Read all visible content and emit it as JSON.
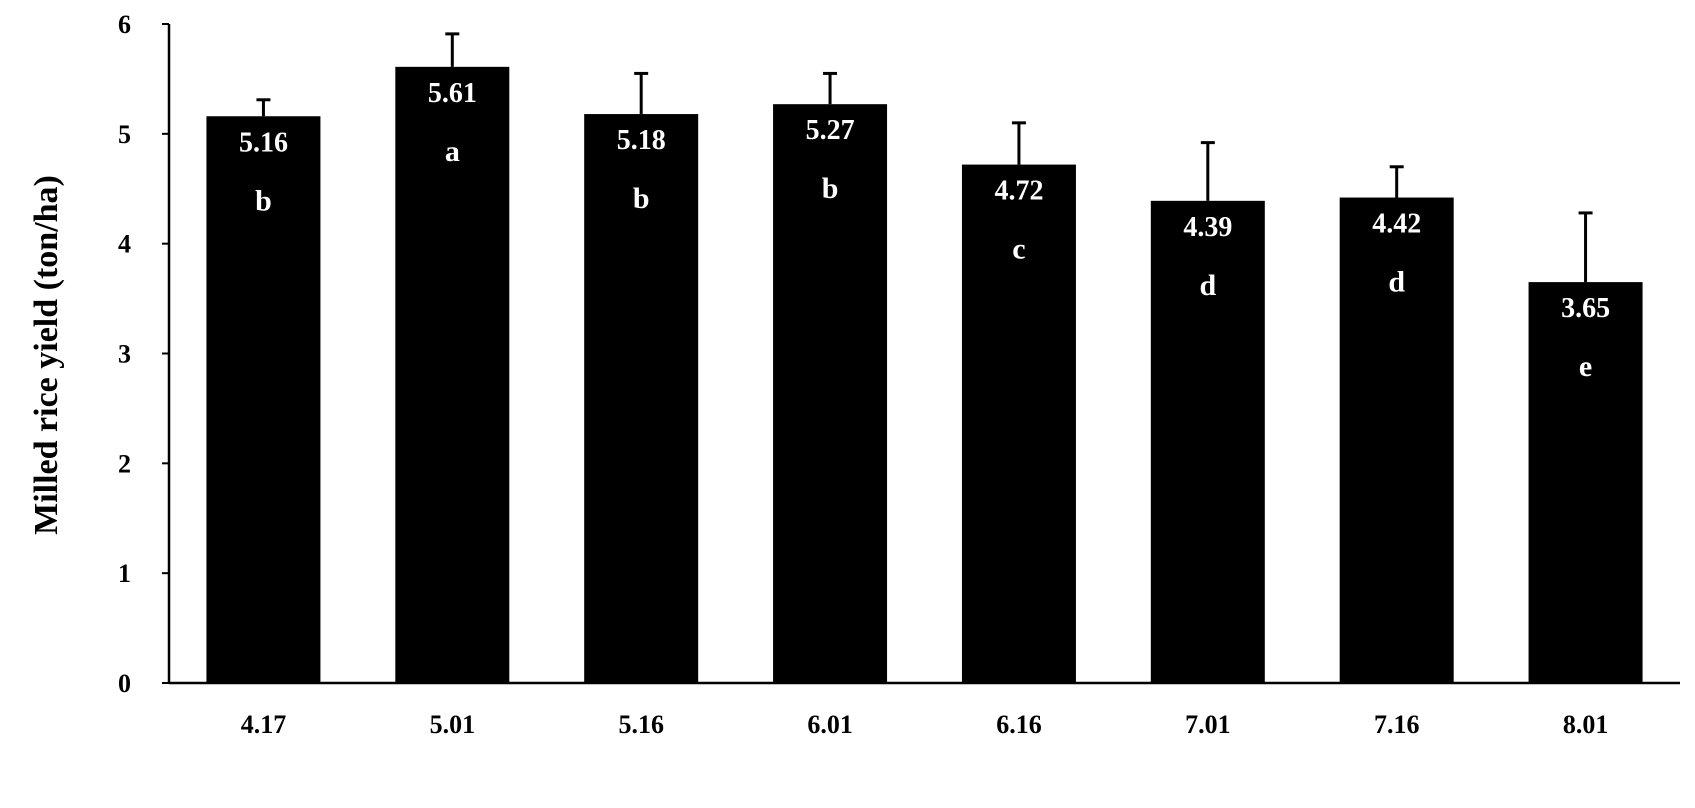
{
  "chart_data": {
    "type": "bar",
    "title": "",
    "xlabel": "",
    "ylabel": "Milled rice yield (ton/ha)",
    "ylim": [
      0,
      6
    ],
    "yticks": [
      "0",
      "1",
      "2",
      "3",
      "4",
      "5",
      "6"
    ],
    "categories": [
      "4.17",
      "5.01",
      "5.16",
      "6.01",
      "6.16",
      "7.01",
      "7.16",
      "8.01"
    ],
    "values": [
      5.16,
      5.61,
      5.18,
      5.27,
      4.72,
      4.39,
      4.42,
      3.65
    ],
    "errors": [
      0.15,
      0.3,
      0.37,
      0.28,
      0.38,
      0.53,
      0.28,
      0.63
    ],
    "value_labels": [
      "5.16",
      "5.61",
      "5.18",
      "5.27",
      "4.72",
      "4.39",
      "4.42",
      "3.65"
    ],
    "letters": [
      "b",
      "a",
      "b",
      "b",
      "c",
      "d",
      "d",
      "e"
    ],
    "bar_color": "#000000",
    "label_color": "#ffffff",
    "grid": false,
    "legend": "none"
  }
}
